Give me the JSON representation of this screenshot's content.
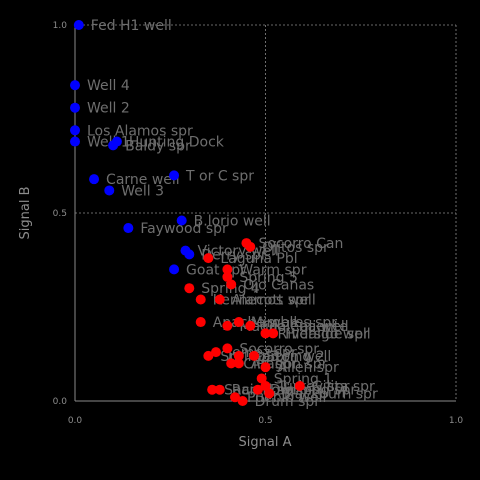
{
  "chart_data": {
    "type": "scatter",
    "xlabel": "Signal A",
    "ylabel": "Signal B",
    "xlim": [
      0.0,
      1.0
    ],
    "ylim": [
      0.0,
      1.0
    ],
    "xticks": [
      "0.0",
      "0.5",
      "1.0"
    ],
    "yticks": [
      "0.0",
      "0.5",
      "1.0"
    ],
    "grid": true,
    "series": [
      {
        "color": "#0000ff",
        "points": [
          {
            "x": 0.01,
            "y": 1.0,
            "label": "Fed H1 well"
          },
          {
            "x": 0.0,
            "y": 0.84,
            "label": "Well 4"
          },
          {
            "x": 0.0,
            "y": 0.78,
            "label": "Well 2"
          },
          {
            "x": 0.0,
            "y": 0.72,
            "label": "Los Alamos spr"
          },
          {
            "x": 0.0,
            "y": 0.69,
            "label": "Well 1"
          },
          {
            "x": 0.1,
            "y": 0.68,
            "label": "Baldy spr"
          },
          {
            "x": 0.11,
            "y": 0.69,
            "label": "Hunting Dock"
          },
          {
            "x": 0.05,
            "y": 0.59,
            "label": "Carne well"
          },
          {
            "x": 0.26,
            "y": 0.6,
            "label": "T or C spr"
          },
          {
            "x": 0.09,
            "y": 0.56,
            "label": "Well 3"
          },
          {
            "x": 0.28,
            "y": 0.48,
            "label": "B.lorio well"
          },
          {
            "x": 0.14,
            "y": 0.46,
            "label": "Faywood spr"
          },
          {
            "x": 0.29,
            "y": 0.4,
            "label": "Victory well"
          },
          {
            "x": 0.3,
            "y": 0.39,
            "label": "Derry spr"
          },
          {
            "x": 0.26,
            "y": 0.35,
            "label": "Goat spr"
          }
        ]
      },
      {
        "color": "#ff0000",
        "points": [
          {
            "x": 0.45,
            "y": 0.42,
            "label": "Socorro Can"
          },
          {
            "x": 0.46,
            "y": 0.41,
            "label": "Ojitos spr"
          },
          {
            "x": 0.35,
            "y": 0.38,
            "label": "Laguna Pbl"
          },
          {
            "x": 0.4,
            "y": 0.35,
            "label": "Warm spr"
          },
          {
            "x": 0.4,
            "y": 0.33,
            "label": "Spring 5"
          },
          {
            "x": 0.41,
            "y": 0.31,
            "label": "Ojo Canas"
          },
          {
            "x": 0.3,
            "y": 0.3,
            "label": "Spring 4"
          },
          {
            "x": 0.38,
            "y": 0.27,
            "label": "Alamos spr"
          },
          {
            "x": 0.33,
            "y": 0.27,
            "label": "Kennecott well"
          },
          {
            "x": 0.33,
            "y": 0.21,
            "label": "Apache well"
          },
          {
            "x": 0.43,
            "y": 0.21,
            "label": "Mimbres spr"
          },
          {
            "x": 0.46,
            "y": 0.2,
            "label": "Ojo Caliente"
          },
          {
            "x": 0.5,
            "y": 0.18,
            "label": "Riverside spr"
          },
          {
            "x": 0.52,
            "y": 0.18,
            "label": "Hidalgo well"
          },
          {
            "x": 0.4,
            "y": 0.2,
            "label": "Magdalena well"
          },
          {
            "x": 0.4,
            "y": 0.14,
            "label": "Socorro spr"
          },
          {
            "x": 0.37,
            "y": 0.13,
            "label": "Jemez spr"
          },
          {
            "x": 0.35,
            "y": 0.12,
            "label": "Spring 3"
          },
          {
            "x": 0.43,
            "y": 0.12,
            "label": "Garton well"
          },
          {
            "x": 0.47,
            "y": 0.12,
            "label": "Spring 2"
          },
          {
            "x": 0.41,
            "y": 0.1,
            "label": "Cliff spr"
          },
          {
            "x": 0.43,
            "y": 0.1,
            "label": "Aragon spr"
          },
          {
            "x": 0.5,
            "y": 0.09,
            "label": "Allen spr"
          },
          {
            "x": 0.49,
            "y": 0.06,
            "label": "Spring 1"
          },
          {
            "x": 0.59,
            "y": 0.04,
            "label": "Gilita spr"
          },
          {
            "x": 0.5,
            "y": 0.04,
            "label": "Turkey spr"
          },
          {
            "x": 0.36,
            "y": 0.03,
            "label": "Sacred spr"
          },
          {
            "x": 0.38,
            "y": 0.03,
            "label": "Rainbow spr"
          },
          {
            "x": 0.42,
            "y": 0.01,
            "label": "Pueblo well"
          },
          {
            "x": 0.44,
            "y": 0.0,
            "label": "Drum spr"
          },
          {
            "x": 0.48,
            "y": 0.03,
            "label": "Dripping spr"
          },
          {
            "x": 0.51,
            "y": 0.02,
            "label": "Blackburn spr"
          }
        ]
      }
    ]
  }
}
